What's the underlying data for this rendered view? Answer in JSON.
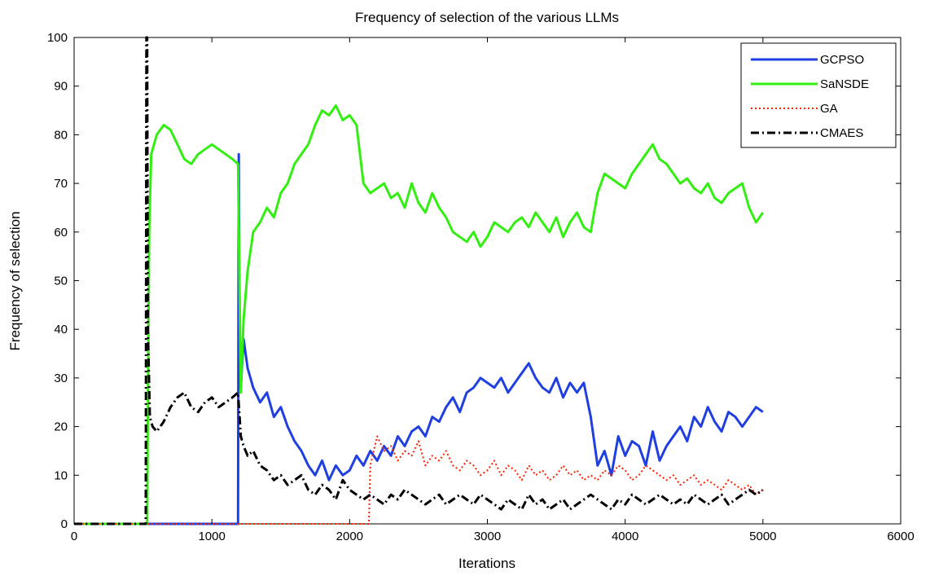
{
  "chart_data": {
    "type": "line",
    "title": "Frequency of selection of the various LLMs",
    "xlabel": "Iterations",
    "ylabel": "Frequency of selection",
    "xlim": [
      0,
      6000
    ],
    "ylim": [
      0,
      100
    ],
    "xticks": [
      0,
      1000,
      2000,
      3000,
      4000,
      5000,
      6000
    ],
    "yticks": [
      0,
      10,
      20,
      30,
      40,
      50,
      60,
      70,
      80,
      90,
      100
    ],
    "grid": false,
    "legend_position": "top-right",
    "series": [
      {
        "name": "GCPSO",
        "color": "#1f3fe0",
        "style": "solid",
        "x": [
          0,
          1190,
          1195,
          1200,
          1210,
          1230,
          1260,
          1300,
          1350,
          1400,
          1450,
          1500,
          1550,
          1600,
          1650,
          1700,
          1750,
          1800,
          1850,
          1900,
          1950,
          2000,
          2050,
          2100,
          2150,
          2200,
          2250,
          2300,
          2350,
          2400,
          2450,
          2500,
          2550,
          2600,
          2650,
          2700,
          2750,
          2800,
          2850,
          2900,
          2950,
          3000,
          3050,
          3100,
          3150,
          3200,
          3250,
          3300,
          3350,
          3400,
          3450,
          3500,
          3550,
          3600,
          3650,
          3700,
          3750,
          3800,
          3850,
          3900,
          3950,
          4000,
          4050,
          4100,
          4150,
          4200,
          4250,
          4300,
          4350,
          4400,
          4450,
          4500,
          4550,
          4600,
          4650,
          4700,
          4750,
          4800,
          4850,
          4900,
          4950,
          5000
        ],
        "y": [
          0,
          0,
          76,
          40,
          28,
          38,
          32,
          28,
          25,
          27,
          22,
          24,
          20,
          17,
          15,
          12,
          10,
          13,
          9,
          12,
          10,
          11,
          14,
          12,
          15,
          13,
          16,
          14,
          18,
          16,
          19,
          20,
          18,
          22,
          21,
          24,
          26,
          23,
          27,
          28,
          30,
          29,
          28,
          30,
          27,
          29,
          31,
          33,
          30,
          28,
          27,
          30,
          26,
          29,
          27,
          29,
          22,
          12,
          15,
          10,
          18,
          14,
          17,
          16,
          12,
          19,
          13,
          16,
          18,
          20,
          17,
          22,
          20,
          24,
          21,
          19,
          23,
          22,
          20,
          22,
          24,
          23
        ]
      },
      {
        "name": "SaNSDE",
        "color": "#33ee11",
        "style": "solid",
        "x": [
          0,
          530,
          535,
          545,
          560,
          600,
          650,
          700,
          750,
          800,
          850,
          900,
          950,
          1000,
          1050,
          1100,
          1150,
          1190,
          1210,
          1230,
          1260,
          1300,
          1350,
          1400,
          1450,
          1500,
          1550,
          1600,
          1650,
          1700,
          1750,
          1800,
          1850,
          1900,
          1950,
          2000,
          2050,
          2100,
          2150,
          2200,
          2250,
          2300,
          2350,
          2400,
          2450,
          2500,
          2550,
          2600,
          2650,
          2700,
          2750,
          2800,
          2850,
          2900,
          2950,
          3000,
          3050,
          3100,
          3150,
          3200,
          3250,
          3300,
          3350,
          3400,
          3450,
          3500,
          3550,
          3600,
          3650,
          3700,
          3750,
          3800,
          3850,
          3900,
          3950,
          4000,
          4050,
          4100,
          4150,
          4200,
          4250,
          4300,
          4350,
          4400,
          4450,
          4500,
          4550,
          4600,
          4650,
          4700,
          4750,
          4800,
          4850,
          4900,
          4950,
          5000
        ],
        "y": [
          0,
          0,
          22,
          60,
          76,
          80,
          82,
          81,
          78,
          75,
          74,
          76,
          77,
          78,
          77,
          76,
          75,
          74,
          27,
          42,
          52,
          60,
          62,
          65,
          63,
          68,
          70,
          74,
          76,
          78,
          82,
          85,
          84,
          86,
          83,
          84,
          82,
          70,
          68,
          69,
          70,
          67,
          68,
          65,
          70,
          66,
          64,
          68,
          65,
          63,
          60,
          59,
          58,
          60,
          57,
          59,
          62,
          61,
          60,
          62,
          63,
          61,
          64,
          62,
          60,
          63,
          59,
          62,
          64,
          61,
          60,
          68,
          72,
          71,
          70,
          69,
          72,
          74,
          76,
          78,
          75,
          74,
          72,
          70,
          71,
          69,
          68,
          70,
          67,
          66,
          68,
          69,
          70,
          65,
          62,
          64
        ]
      },
      {
        "name": "GA",
        "color": "#ff2200",
        "style": "dotted",
        "x": [
          0,
          2140,
          2150,
          2200,
          2250,
          2300,
          2350,
          2400,
          2450,
          2500,
          2550,
          2600,
          2650,
          2700,
          2750,
          2800,
          2850,
          2900,
          2950,
          3000,
          3050,
          3100,
          3150,
          3200,
          3250,
          3300,
          3350,
          3400,
          3450,
          3500,
          3550,
          3600,
          3650,
          3700,
          3750,
          3800,
          3850,
          3900,
          3950,
          4000,
          4050,
          4100,
          4150,
          4200,
          4250,
          4300,
          4350,
          4400,
          4450,
          4500,
          4550,
          4600,
          4650,
          4700,
          4750,
          4800,
          4850,
          4900,
          4950,
          5000
        ],
        "y": [
          0,
          0,
          12,
          18,
          15,
          16,
          13,
          15,
          14,
          17,
          12,
          14,
          13,
          15,
          12,
          11,
          13,
          12,
          10,
          11,
          13,
          10,
          12,
          11,
          9,
          12,
          10,
          11,
          9,
          10,
          12,
          10,
          11,
          9,
          10,
          9,
          11,
          10,
          12,
          11,
          9,
          10,
          12,
          11,
          10,
          9,
          10,
          8,
          9,
          10,
          8,
          9,
          8,
          7,
          9,
          8,
          7,
          8,
          6,
          7
        ]
      },
      {
        "name": "CMAES",
        "color": "#000000",
        "style": "dashdot",
        "x": [
          0,
          520,
          525,
          530,
          535,
          540,
          550,
          570,
          600,
          650,
          700,
          750,
          800,
          850,
          900,
          950,
          1000,
          1050,
          1100,
          1150,
          1190,
          1210,
          1230,
          1260,
          1300,
          1350,
          1400,
          1450,
          1500,
          1550,
          1600,
          1650,
          1700,
          1750,
          1800,
          1850,
          1900,
          1950,
          2000,
          2050,
          2100,
          2150,
          2200,
          2250,
          2300,
          2350,
          2400,
          2450,
          2500,
          2550,
          2600,
          2650,
          2700,
          2750,
          2800,
          2850,
          2900,
          2950,
          3000,
          3050,
          3100,
          3150,
          3200,
          3250,
          3300,
          3350,
          3400,
          3450,
          3500,
          3550,
          3600,
          3650,
          3700,
          3750,
          3800,
          3850,
          3900,
          3950,
          4000,
          4050,
          4100,
          4150,
          4200,
          4250,
          4300,
          4350,
          4400,
          4450,
          4500,
          4550,
          4600,
          4650,
          4700,
          4750,
          4800,
          4850,
          4900,
          4950,
          5000
        ],
        "y": [
          0,
          0,
          100,
          100,
          40,
          35,
          22,
          20,
          19,
          21,
          24,
          26,
          27,
          24,
          23,
          25,
          26,
          24,
          25,
          26,
          27,
          18,
          16,
          14,
          15,
          12,
          11,
          9,
          10,
          8,
          9,
          10,
          7,
          6,
          8,
          7,
          5,
          9,
          7,
          6,
          5,
          6,
          5,
          4,
          6,
          5,
          7,
          6,
          5,
          4,
          5,
          6,
          4,
          5,
          6,
          5,
          4,
          6,
          5,
          4,
          3,
          5,
          4,
          3,
          6,
          4,
          5,
          3,
          4,
          5,
          3,
          4,
          5,
          6,
          5,
          4,
          3,
          5,
          4,
          6,
          5,
          4,
          5,
          6,
          5,
          4,
          5,
          4,
          6,
          5,
          4,
          5,
          6,
          4,
          5,
          6,
          7,
          6,
          7
        ]
      }
    ]
  }
}
